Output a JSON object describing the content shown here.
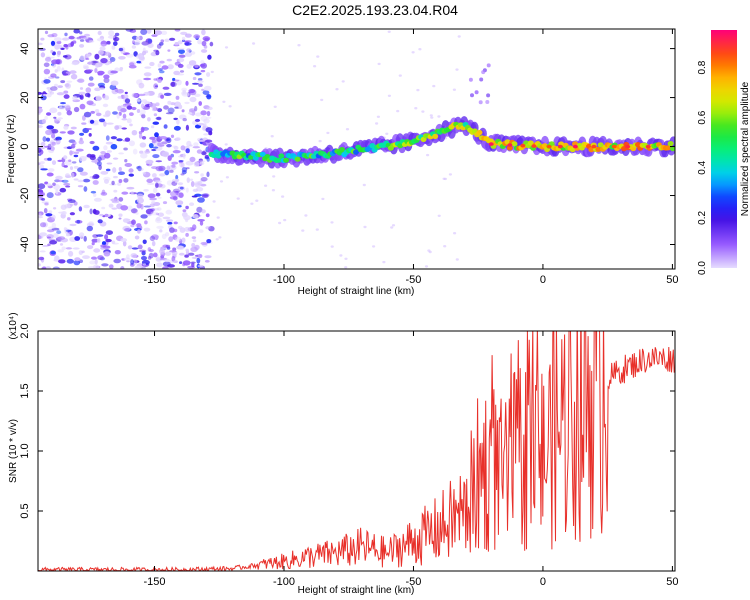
{
  "title": "C2E2.2025.193.23.04.R04",
  "chart_data": [
    {
      "type": "heatmap",
      "xlabel": "Height of straight line (km)",
      "ylabel": "Frequency (Hz)",
      "xlim": [
        -195,
        51
      ],
      "ylim": [
        -50,
        48
      ],
      "xticks": [
        -150,
        -100,
        -50,
        0,
        50
      ],
      "yticks": [
        -40,
        -20,
        0,
        20,
        40
      ],
      "colorbar": {
        "label": "Normalized spectral amplitude",
        "range": [
          0,
          0.95
        ],
        "ticks": [
          0.0,
          0.2,
          0.4,
          0.6,
          0.8
        ]
      },
      "ridge": {
        "x": [
          -140,
          -125,
          -100,
          -75,
          -50,
          -40,
          -30,
          -20,
          0,
          20,
          51
        ],
        "y": [
          -2,
          -3,
          -5,
          -2,
          2,
          6,
          9,
          1,
          0,
          0,
          0
        ]
      },
      "noise_region_x": [
        -195,
        -128
      ]
    },
    {
      "type": "line",
      "xlabel": "Height of straight line (km)",
      "ylabel": "SNR (10 * v/v)",
      "y_multiplier": "(x10⁴)",
      "xlim": [
        -195,
        51
      ],
      "ylim": [
        0,
        2.0
      ],
      "xticks": [
        -150,
        -100,
        -50,
        0,
        50
      ],
      "yticks": [
        0.5,
        1.0,
        1.5,
        2.0
      ],
      "series": [
        {
          "color": "#e8302a",
          "x": [
            -195,
            -180,
            -160,
            -140,
            -120,
            -110,
            -100,
            -90,
            -80,
            -70,
            -60,
            -50,
            -40,
            -30,
            -25,
            -20,
            -15,
            -10,
            -5,
            0,
            5,
            10,
            20,
            30,
            40,
            51
          ],
          "values": [
            0.01,
            0.01,
            0.01,
            0.01,
            0.02,
            0.05,
            0.08,
            0.12,
            0.15,
            0.2,
            0.15,
            0.25,
            0.35,
            0.5,
            0.8,
            0.9,
            0.75,
            0.95,
            1.0,
            0.95,
            1.2,
            1.3,
            1.55,
            1.7,
            1.8,
            1.8
          ]
        }
      ]
    }
  ]
}
